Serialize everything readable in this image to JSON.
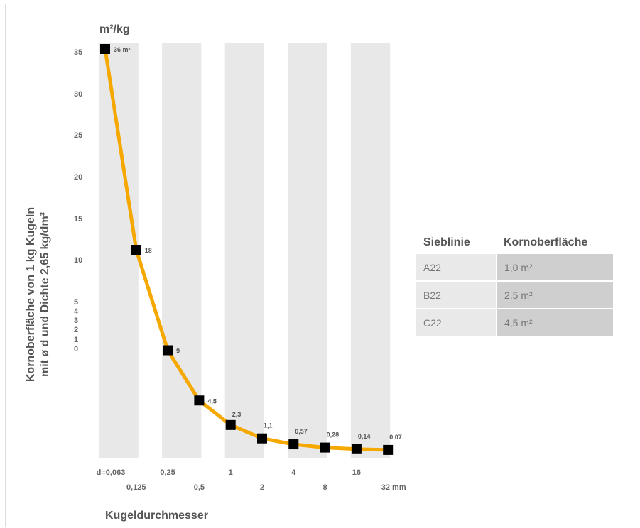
{
  "chart_data": {
    "type": "line",
    "y_unit": "m²/kg",
    "ylabel_line1": "Kornoberfläche von 1 kg Kugeln",
    "ylabel_line2": "mit ø d und Dichte 2,65 kg/dm³",
    "xlabel": "Kugeldurchmesser",
    "y_ticks": [
      "35",
      "30",
      "25",
      "20",
      "15",
      "10",
      "5",
      "4",
      "3",
      "2",
      "1",
      "0"
    ],
    "x_ticks": [
      "d=0,063",
      "0,125",
      "0,25",
      "0,5",
      "1",
      "2",
      "4",
      "8",
      "16",
      "32 mm"
    ],
    "x": [
      0.063,
      0.125,
      0.25,
      0.5,
      1,
      2,
      4,
      8,
      16,
      32
    ],
    "series": [
      {
        "values": [
          36,
          18,
          9,
          4.5,
          2.3,
          1.1,
          0.57,
          0.28,
          0.14,
          0.07
        ],
        "labels": [
          "36 m²",
          "18",
          "9",
          "4,5",
          "2,3",
          "1,1",
          "0,57",
          "0,28",
          "0,14",
          "0,07"
        ],
        "color": "#f5a800"
      }
    ],
    "ylim": [
      0,
      36
    ],
    "x_scale": "log2",
    "band_color": "#e8e8e8"
  },
  "table": {
    "headers": [
      "Sieblinie",
      "Kornoberflä­che"
    ],
    "rows": [
      [
        "A22",
        "1,0 m²"
      ],
      [
        "B22",
        "2,5 m²"
      ],
      [
        "C22",
        "4,5 m²"
      ]
    ]
  }
}
